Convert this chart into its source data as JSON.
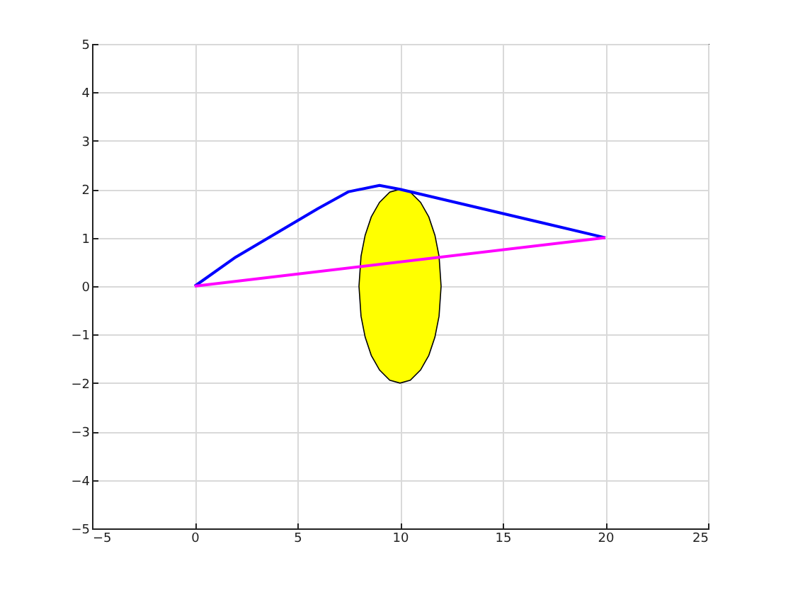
{
  "chart_data": {
    "type": "line",
    "xlim": [
      -5,
      25
    ],
    "xticks": [
      -5,
      0,
      5,
      10,
      15,
      20,
      25
    ],
    "ylim": [
      -5,
      5
    ],
    "yticks": [
      -5,
      -4,
      -3,
      -2,
      -1,
      0,
      1,
      2,
      3,
      4,
      5
    ],
    "grid": true,
    "series": [
      {
        "type": "area",
        "color": "#ffff00",
        "x": [
          8,
          8.1,
          8.3,
          8.6,
          9,
          9.5,
          10,
          10.5,
          11,
          11.4,
          11.7,
          11.9,
          12
        ],
        "values": [
          0,
          0.62,
          1.05,
          1.43,
          1.73,
          1.94,
          2,
          1.94,
          1.73,
          1.43,
          1.05,
          0.62,
          0
        ]
      },
      {
        "type": "area",
        "color": "#ffff00",
        "x": [
          8,
          8.1,
          8.3,
          8.6,
          9,
          9.5,
          10,
          10.5,
          11,
          11.4,
          11.7,
          11.9,
          12
        ],
        "values": [
          0,
          -0.62,
          -1.05,
          -1.43,
          -1.73,
          -1.94,
          -2,
          -1.94,
          -1.73,
          -1.43,
          -1.05,
          -0.62,
          0
        ]
      },
      {
        "color": "#0000ff",
        "x": [
          0,
          2,
          4,
          6,
          7.5,
          9,
          10,
          20
        ],
        "values": [
          0,
          0.6,
          1.1,
          1.6,
          1.95,
          2.08,
          2,
          1
        ]
      },
      {
        "color": "#ff00ff",
        "x": [
          0,
          20
        ],
        "values": [
          0,
          1
        ]
      }
    ]
  }
}
